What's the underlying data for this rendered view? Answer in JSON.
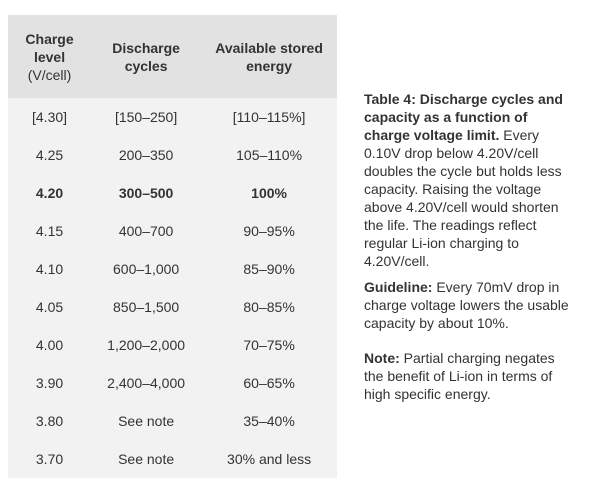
{
  "table": {
    "headers": [
      {
        "label": "Charge level",
        "unit": "(V/cell)"
      },
      {
        "label": "Discharge cycles"
      },
      {
        "label": "Available stored energy"
      }
    ],
    "highlight_row": 2,
    "rows": [
      [
        "[4.30]",
        "[150–250]",
        "[110–115%]"
      ],
      [
        "4.25",
        "200–350",
        "105–110%"
      ],
      [
        "4.20",
        "300–500",
        "100%"
      ],
      [
        "4.15",
        "400–700",
        "90–95%"
      ],
      [
        "4.10",
        "600–1,000",
        "85–90%"
      ],
      [
        "4.05",
        "850–1,500",
        "80–85%"
      ],
      [
        "4.00",
        "1,200–2,000",
        "70–75%"
      ],
      [
        "3.90",
        "2,400–4,000",
        "60–65%"
      ],
      [
        "3.80",
        "See note",
        "35–40%"
      ],
      [
        "3.70",
        "See note",
        "30% and less"
      ]
    ]
  },
  "caption": {
    "paragraphs": [
      {
        "lead": "Table 4: Discharge cycles and capacity as a function of charge voltage limit.",
        "text": "Every 0.10V drop below 4.20V/cell doubles the cycle but holds less capacity. Raising the voltage above 4.20V/cell would shorten the life. The readings reflect regular Li-ion charging to 4.20V/cell."
      },
      {
        "lead": "Guideline:",
        "text": "Every 70mV drop in charge voltage lowers the usable capacity by about 10%."
      },
      {
        "lead": "Note:",
        "text": "Partial charging negates the benefit of Li-ion in terms of high specific energy."
      }
    ]
  }
}
